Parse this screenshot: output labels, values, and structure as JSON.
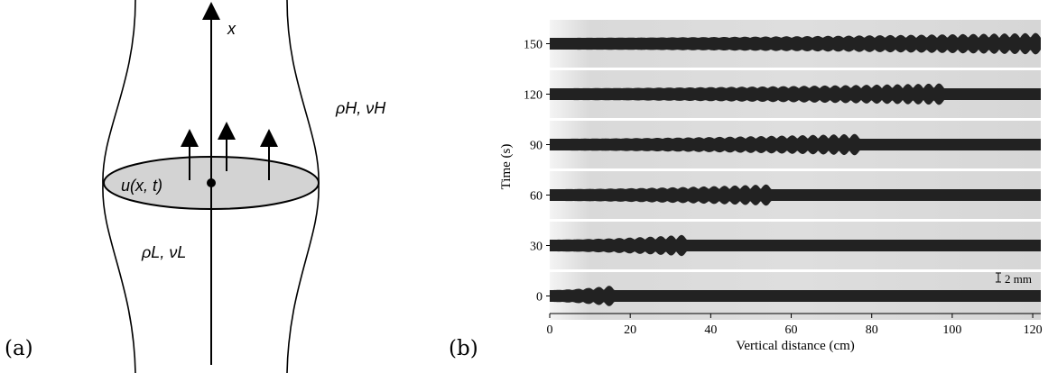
{
  "panel_a": {
    "label": "(a)",
    "axis_label": "x",
    "velocity_label": "u(x, t)",
    "heavy_fluid_label": "ρH, νH",
    "light_fluid_label": "ρL, νL"
  },
  "panel_b": {
    "label": "(b)",
    "scale_bar_label": "2 mm"
  },
  "chart_data": {
    "type": "image-strips",
    "xlabel": "Vertical distance (cm)",
    "ylabel": "Time (s)",
    "xlim": [
      0,
      122
    ],
    "x_ticks": [
      "0",
      "20",
      "40",
      "60",
      "80",
      "100",
      "120"
    ],
    "rows": [
      {
        "time": "150",
        "front_cm": 122
      },
      {
        "time": "120",
        "front_cm": 98
      },
      {
        "time": "90",
        "front_cm": 77
      },
      {
        "time": "60",
        "front_cm": 55
      },
      {
        "time": "30",
        "front_cm": 34
      },
      {
        "time": "0",
        "front_cm": 16
      }
    ],
    "grid": false
  },
  "colors": {
    "ink": "#000000",
    "ellipse_fill": "#d3d3d3",
    "strip_background": "#d9d9d9",
    "filament": "#222222"
  }
}
